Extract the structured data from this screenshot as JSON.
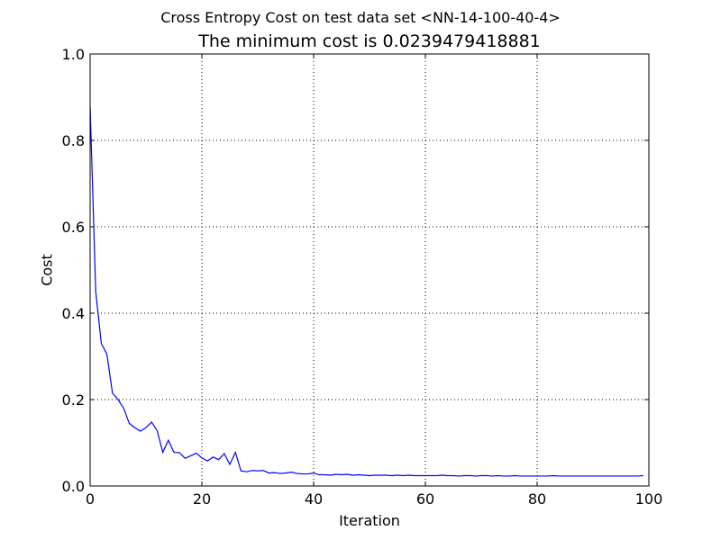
{
  "chart_data": {
    "type": "line",
    "suptitle": "Cross Entropy Cost on test data set <NN-14-100-40-4>",
    "title": "The minimum cost is 0.0239479418881",
    "xlabel": "Iteration",
    "ylabel": "Cost",
    "xlim": [
      0,
      100
    ],
    "ylim": [
      0.0,
      1.0
    ],
    "xticks": [
      0,
      20,
      40,
      60,
      80,
      100
    ],
    "xtick_labels": [
      "0",
      "20",
      "40",
      "60",
      "80",
      "100"
    ],
    "yticks": [
      0.0,
      0.2,
      0.4,
      0.6,
      0.8,
      1.0
    ],
    "ytick_labels": [
      "0.0",
      "0.2",
      "0.4",
      "0.6",
      "0.8",
      "1.0"
    ],
    "grid": true,
    "line_color": "#0000ff",
    "series": [
      {
        "x": [
          0,
          1,
          2,
          3,
          4,
          5,
          6,
          7,
          8,
          9,
          10,
          11,
          12,
          13,
          14,
          15,
          16,
          17,
          18,
          19,
          20,
          21,
          22,
          23,
          24,
          25,
          26,
          27,
          28,
          29,
          30,
          31,
          32,
          33,
          34,
          35,
          36,
          37,
          38,
          39,
          40,
          41,
          42,
          43,
          44,
          45,
          46,
          47,
          48,
          49,
          50,
          51,
          52,
          53,
          54,
          55,
          56,
          57,
          58,
          59,
          60,
          61,
          62,
          63,
          64,
          65,
          66,
          67,
          68,
          69,
          70,
          71,
          72,
          73,
          74,
          75,
          76,
          77,
          78,
          79,
          80,
          81,
          82,
          83,
          84,
          85,
          86,
          87,
          88,
          89,
          90,
          91,
          92,
          93,
          94,
          95,
          96,
          97,
          98,
          99
        ],
        "y": [
          0.88,
          0.45,
          0.33,
          0.305,
          0.215,
          0.2,
          0.18,
          0.145,
          0.135,
          0.127,
          0.135,
          0.148,
          0.128,
          0.078,
          0.106,
          0.078,
          0.077,
          0.064,
          0.07,
          0.076,
          0.065,
          0.058,
          0.067,
          0.061,
          0.075,
          0.05,
          0.078,
          0.035,
          0.033,
          0.036,
          0.035,
          0.036,
          0.03,
          0.031,
          0.029,
          0.03,
          0.032,
          0.029,
          0.028,
          0.028,
          0.03,
          0.026,
          0.026,
          0.025,
          0.027,
          0.026,
          0.027,
          0.025,
          0.026,
          0.025,
          0.024,
          0.025,
          0.025,
          0.025,
          0.024,
          0.025,
          0.024,
          0.025,
          0.024,
          0.024,
          0.024,
          0.024,
          0.024,
          0.025,
          0.024,
          0.024,
          0.023,
          0.024,
          0.024,
          0.023,
          0.024,
          0.024,
          0.023,
          0.024,
          0.023,
          0.023,
          0.024,
          0.023,
          0.023,
          0.023,
          0.023,
          0.023,
          0.023,
          0.024,
          0.023,
          0.023,
          0.023,
          0.023,
          0.023,
          0.023,
          0.023,
          0.023,
          0.023,
          0.023,
          0.023,
          0.023,
          0.023,
          0.023,
          0.023,
          0.0239
        ]
      }
    ]
  }
}
